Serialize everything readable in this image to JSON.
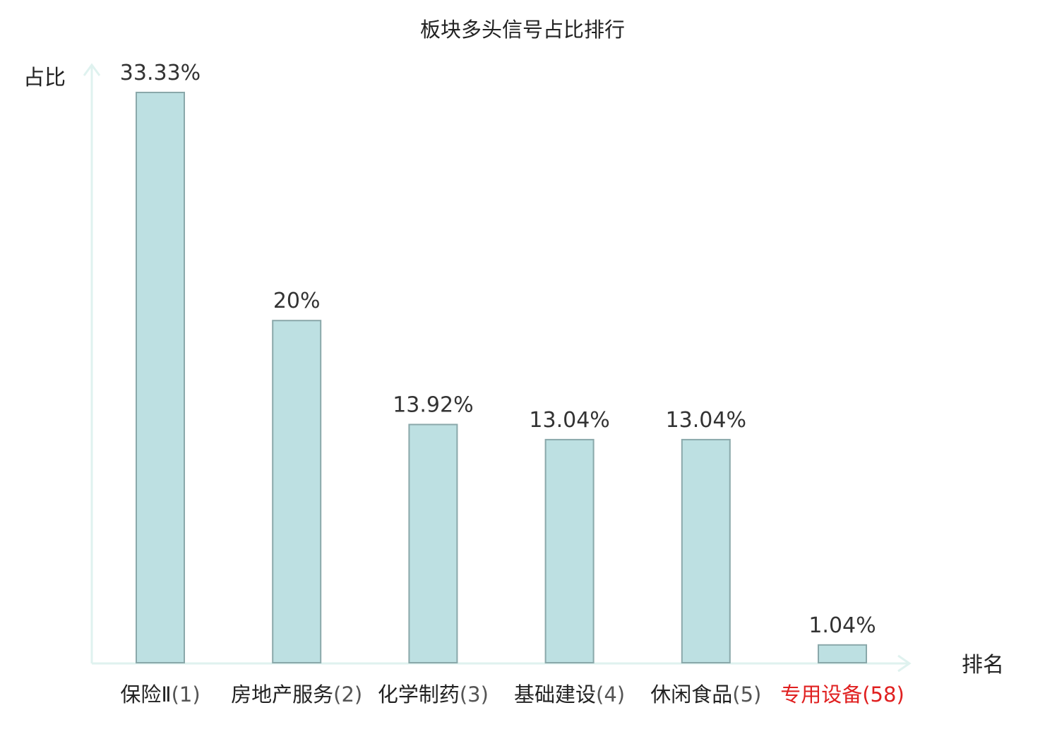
{
  "chart_data": {
    "type": "bar",
    "title": "板块多头信号占比排行",
    "ylabel": "占比",
    "xlabel": "排名",
    "ylim": [
      0,
      33.33
    ],
    "grid": false,
    "categories": [
      {
        "name": "保险Ⅱ",
        "rank": "(1)",
        "highlight": false
      },
      {
        "name": "房地产服务",
        "rank": "(2)",
        "highlight": false
      },
      {
        "name": "化学制药",
        "rank": "(3)",
        "highlight": false
      },
      {
        "name": "基础建设",
        "rank": "(4)",
        "highlight": false
      },
      {
        "name": "休闲食品",
        "rank": "(5)",
        "highlight": false
      },
      {
        "name": "专用设备",
        "rank": "(58)",
        "highlight": true
      }
    ],
    "values": [
      33.33,
      20,
      13.92,
      13.04,
      13.04,
      1.04
    ],
    "value_labels": [
      "33.33%",
      "20%",
      "13.92%",
      "13.04%",
      "13.04%",
      "1.04%"
    ],
    "colors": {
      "bar_fill": "#bde0e2",
      "bar_stroke": "#8aa8aa",
      "axis": "#dff2ef",
      "highlight": "#e02020"
    }
  }
}
